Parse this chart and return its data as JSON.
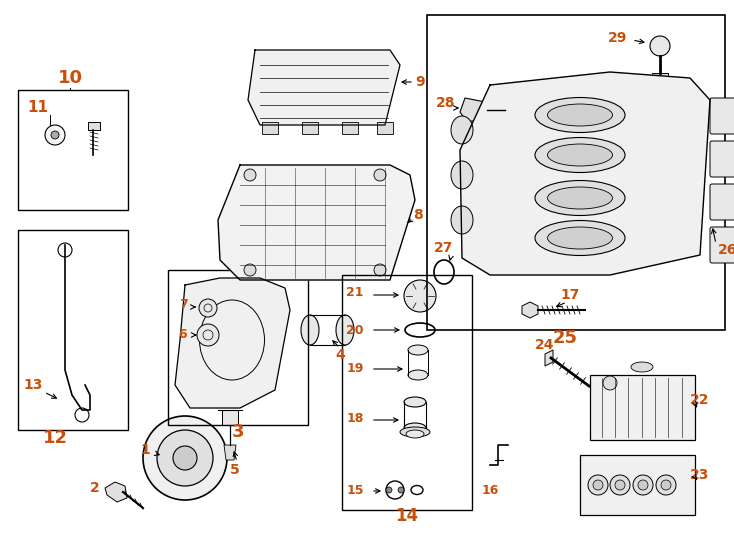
{
  "bg_color": "#ffffff",
  "line_color": "#000000",
  "number_color": "#c8500a",
  "fig_width": 7.34,
  "fig_height": 5.4,
  "dpi": 100
}
